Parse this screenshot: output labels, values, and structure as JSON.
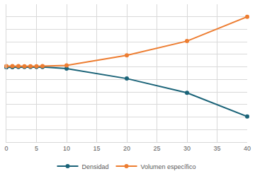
{
  "chart_data": {
    "type": "line",
    "x": [
      0,
      1,
      2,
      3,
      4,
      5,
      6,
      10,
      20,
      30,
      40
    ],
    "series": [
      {
        "name": "Densidad",
        "color": "#1a6378",
        "marker": "circle",
        "values": [
          5.97,
          5.98,
          5.99,
          5.99,
          6.0,
          5.99,
          5.99,
          5.87,
          5.07,
          3.93,
          2.04
        ]
      },
      {
        "name": "Volumen específico",
        "color": "#ed7d31",
        "marker": "circle",
        "values": [
          6.07,
          6.06,
          6.06,
          6.05,
          6.05,
          6.05,
          6.06,
          6.12,
          6.92,
          8.06,
          10.0
        ]
      }
    ],
    "xlim": [
      0,
      40
    ],
    "xticks": [
      0,
      5,
      10,
      15,
      20,
      25,
      30,
      35,
      40
    ],
    "ylim": [
      0,
      11
    ],
    "yticks": [
      0,
      1,
      2,
      3,
      4,
      5,
      6,
      7,
      8,
      9,
      10,
      11
    ],
    "grid": true,
    "legend": "bottom",
    "tick_labels": "x"
  }
}
